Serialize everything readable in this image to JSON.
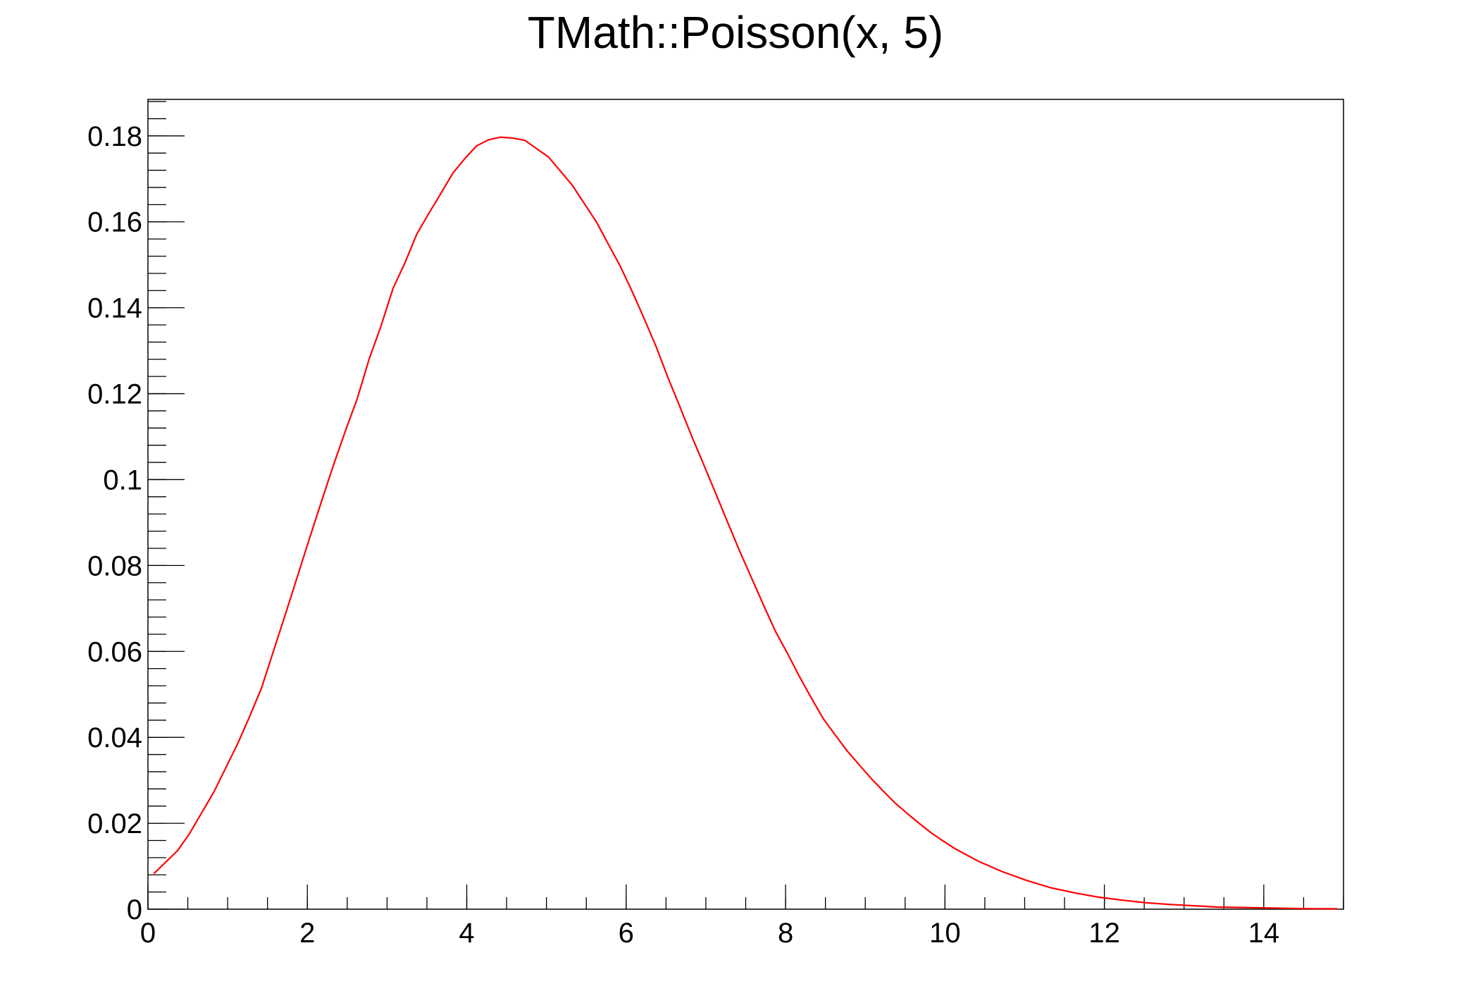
{
  "chart_data": {
    "type": "line",
    "title": "TMath::Poisson(x, 5)",
    "xlabel": "",
    "ylabel": "",
    "xlim": [
      0,
      15
    ],
    "ylim": [
      0,
      0.1885
    ],
    "grid": false,
    "legend": "none",
    "line_color": "#ff0000",
    "x_ticks": [
      0,
      2,
      4,
      6,
      8,
      10,
      12,
      14
    ],
    "x_tick_labels": [
      "0",
      "2",
      "4",
      "6",
      "8",
      "10",
      "12",
      "14"
    ],
    "y_ticks": [
      0,
      0.02,
      0.04,
      0.06,
      0.08,
      0.1,
      0.12,
      0.14,
      0.16,
      0.18
    ],
    "y_tick_labels": [
      "0",
      "0.02",
      "0.04",
      "0.06",
      "0.08",
      "0.1",
      "0.12",
      "0.14",
      "0.16",
      "0.18"
    ],
    "series": [
      {
        "x": [
          0.075,
          0.375,
          0.525,
          0.825,
          1.125,
          1.275,
          1.425,
          1.575,
          1.725,
          1.875,
          2.025,
          2.175,
          2.325,
          2.475,
          2.625,
          2.775,
          2.925,
          3.075,
          3.225,
          3.375,
          3.525,
          3.675,
          3.825,
          3.975,
          4.125,
          4.275,
          4.425,
          4.575,
          4.725,
          5.025,
          5.325,
          5.625,
          5.925,
          6.075,
          6.225,
          6.375,
          6.525,
          6.675,
          6.825,
          6.975,
          7.125,
          7.275,
          7.425,
          7.575,
          7.725,
          7.875,
          8.025,
          8.175,
          8.325,
          8.475,
          8.625,
          8.775,
          8.925,
          9.075,
          9.225,
          9.375,
          9.525,
          9.675,
          9.825,
          9.975,
          10.125,
          10.425,
          10.725,
          11.025,
          11.325,
          11.625,
          11.925,
          12.225,
          12.525,
          12.825,
          13.125,
          13.425,
          13.725,
          14.025,
          14.325,
          14.625,
          14.925
        ],
        "y": [
          0.0083,
          0.0137,
          0.0177,
          0.0272,
          0.0385,
          0.0448,
          0.0515,
          0.0601,
          0.0687,
          0.0774,
          0.0862,
          0.0948,
          0.1032,
          0.1112,
          0.1188,
          0.128,
          0.1358,
          0.1445,
          0.1505,
          0.1572,
          0.162,
          0.1666,
          0.1713,
          0.1747,
          0.1777,
          0.1791,
          0.1797,
          0.1795,
          0.179,
          0.1751,
          0.1685,
          0.16,
          0.1497,
          0.1438,
          0.1375,
          0.131,
          0.1237,
          0.1169,
          0.11,
          0.1034,
          0.0967,
          0.09,
          0.0833,
          0.077,
          0.0707,
          0.0646,
          0.0595,
          0.0541,
          0.0491,
          0.0443,
          0.0405,
          0.0368,
          0.0336,
          0.0304,
          0.0275,
          0.0247,
          0.0223,
          0.02,
          0.0178,
          0.0159,
          0.0141,
          0.0111,
          0.0087,
          0.0067,
          0.005,
          0.0038,
          0.0028,
          0.0021,
          0.0015,
          0.0011,
          0.0008,
          0.0005,
          0.0004,
          0.0003,
          0.0002,
          0.0001,
          0.0001
        ]
      }
    ]
  }
}
